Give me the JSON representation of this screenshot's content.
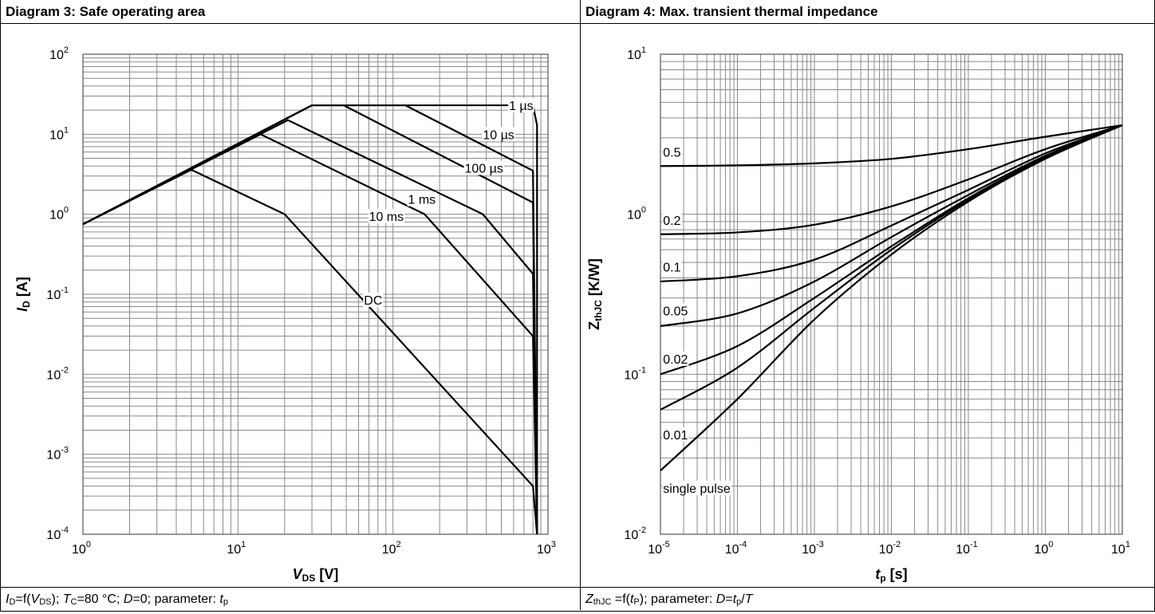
{
  "left": {
    "header": "Diagram 3: Safe operating area",
    "footer": {
      "p1": "I",
      "p1s": "D",
      "p2": "=f(",
      "p3": "V",
      "p3s": "DS",
      "p4": "); ",
      "p5": "T",
      "p5s": "C",
      "p6": "=80 °C; ",
      "p7": "D",
      "p8": "=0; parameter: ",
      "p9": "t",
      "p9s": "p"
    }
  },
  "right": {
    "header": "Diagram 4: Max. transient thermal impedance",
    "footer": {
      "p1": "Z",
      "p1s": "thJC",
      "p2": " =f(",
      "p3": "t",
      "p3s": "P",
      "p4": "); parameter: ",
      "p5": "D",
      "p6": "=",
      "p7": "t",
      "p7s": "p",
      "p8": "/",
      "p9": "T"
    }
  },
  "chart_data": [
    {
      "type": "line",
      "xscale": "log",
      "yscale": "log",
      "xlim": [
        1,
        1000
      ],
      "ylim": [
        0.0001,
        100
      ],
      "xticks": [
        [
          "10",
          "0"
        ],
        [
          "10",
          "1"
        ],
        [
          "10",
          "2"
        ],
        [
          "10",
          "3"
        ]
      ],
      "yticks": [
        [
          "10",
          "2"
        ],
        [
          "10",
          "1"
        ],
        [
          "10",
          "0"
        ],
        [
          "10",
          "-1"
        ],
        [
          "10",
          "-2"
        ],
        [
          "10",
          "-3"
        ],
        [
          "10",
          "-4"
        ]
      ],
      "xlabel": {
        "main": "V",
        "sub": "DS",
        "unit": " [V]"
      },
      "ylabel": {
        "main": "I",
        "sub": "D",
        "unit": " [A]"
      },
      "grid": true,
      "series": [
        {
          "name": "1 µs",
          "points": [
            [
              1,
              0.75
            ],
            [
              30,
              23
            ],
            [
              800,
              23
            ],
            [
              850,
              13
            ],
            [
              850,
              0.0001
            ]
          ]
        },
        {
          "name": "10 µs",
          "points": [
            [
              1,
              0.75
            ],
            [
              30,
              23
            ],
            [
              120,
              23
            ],
            [
              800,
              3.5
            ],
            [
              850,
              0.0001
            ]
          ]
        },
        {
          "name": "100 µs",
          "points": [
            [
              1,
              0.75
            ],
            [
              30,
              23
            ],
            [
              48,
              23
            ],
            [
              800,
              1.4
            ],
            [
              850,
              0.0001
            ]
          ]
        },
        {
          "name": "1 ms",
          "points": [
            [
              1,
              0.75
            ],
            [
              21,
              15
            ],
            [
              380,
              1
            ],
            [
              800,
              0.18
            ],
            [
              850,
              0.0001
            ]
          ]
        },
        {
          "name": "10 ms",
          "points": [
            [
              1,
              0.75
            ],
            [
              14,
              10
            ],
            [
              160,
              1
            ],
            [
              800,
              0.03
            ],
            [
              850,
              0.0001
            ]
          ]
        },
        {
          "name": "DC",
          "points": [
            [
              1,
              0.75
            ],
            [
              5,
              3.6
            ],
            [
              20,
              1
            ],
            [
              800,
              0.0004
            ],
            [
              850,
              0.0001
            ]
          ]
        }
      ],
      "labels": [
        {
          "text": "1 µs",
          "x": 560,
          "y": 23
        },
        {
          "text": "10 µs",
          "x": 380,
          "y": 10
        },
        {
          "text": "100 µs",
          "x": 290,
          "y": 3.8
        },
        {
          "text": "1 ms",
          "x": 125,
          "y": 1.55
        },
        {
          "text": "10 ms",
          "x": 70,
          "y": 0.95
        },
        {
          "text": "DC",
          "x": 65,
          "y": 0.085
        }
      ]
    },
    {
      "type": "line",
      "xscale": "log",
      "yscale": "log",
      "xlim": [
        1e-05,
        10
      ],
      "ylim": [
        0.01,
        10
      ],
      "xticks": [
        [
          "10",
          "-5"
        ],
        [
          "10",
          "-4"
        ],
        [
          "10",
          "-3"
        ],
        [
          "10",
          "-2"
        ],
        [
          "10",
          "-1"
        ],
        [
          "10",
          "0"
        ],
        [
          "10",
          "1"
        ]
      ],
      "yticks": [
        [
          "10",
          "1"
        ],
        [
          "10",
          "0"
        ],
        [
          "10",
          "-1"
        ],
        [
          "10",
          "-2"
        ]
      ],
      "xlabel": {
        "main": "t",
        "sub": "p",
        "unit": " [s]"
      },
      "ylabel": {
        "main": "Z",
        "sub": "thJC",
        "unit": " [K/W]"
      },
      "grid": true,
      "series": [
        {
          "name": "0.5",
          "points": [
            [
              1e-05,
              2
            ],
            [
              0.0001,
              2.02
            ],
            [
              0.001,
              2.08
            ],
            [
              0.01,
              2.22
            ],
            [
              0.1,
              2.55
            ],
            [
              1,
              3.05
            ],
            [
              10,
              3.6
            ]
          ]
        },
        {
          "name": "0.2",
          "points": [
            [
              1e-05,
              0.75
            ],
            [
              0.0001,
              0.77
            ],
            [
              0.001,
              0.86
            ],
            [
              0.01,
              1.12
            ],
            [
              0.1,
              1.65
            ],
            [
              1,
              2.55
            ],
            [
              10,
              3.6
            ]
          ]
        },
        {
          "name": "0.1",
          "points": [
            [
              1e-05,
              0.38
            ],
            [
              0.0001,
              0.41
            ],
            [
              0.001,
              0.52
            ],
            [
              0.01,
              0.85
            ],
            [
              0.1,
              1.42
            ],
            [
              1,
              2.4
            ],
            [
              10,
              3.6
            ]
          ]
        },
        {
          "name": "0.05",
          "points": [
            [
              1e-05,
              0.2
            ],
            [
              0.0001,
              0.24
            ],
            [
              0.001,
              0.38
            ],
            [
              0.01,
              0.72
            ],
            [
              0.1,
              1.32
            ],
            [
              1,
              2.32
            ],
            [
              10,
              3.6
            ]
          ]
        },
        {
          "name": "0.02",
          "points": [
            [
              1e-05,
              0.1
            ],
            [
              0.0001,
              0.15
            ],
            [
              0.001,
              0.3
            ],
            [
              0.01,
              0.63
            ],
            [
              0.1,
              1.26
            ],
            [
              1,
              2.27
            ],
            [
              10,
              3.6
            ]
          ]
        },
        {
          "name": "0.01",
          "points": [
            [
              1e-05,
              0.06
            ],
            [
              0.0001,
              0.11
            ],
            [
              0.001,
              0.26
            ],
            [
              0.01,
              0.6
            ],
            [
              0.1,
              1.23
            ],
            [
              1,
              2.25
            ],
            [
              10,
              3.6
            ]
          ]
        },
        {
          "name": "single pulse",
          "points": [
            [
              1e-05,
              0.025
            ],
            [
              0.0001,
              0.07
            ],
            [
              0.001,
              0.22
            ],
            [
              0.01,
              0.56
            ],
            [
              0.1,
              1.2
            ],
            [
              1,
              2.22
            ],
            [
              10,
              3.6
            ]
          ]
        }
      ],
      "labels": [
        {
          "text": "0.5",
          "x": 1.08e-05,
          "y": 2.45
        },
        {
          "text": "0.2",
          "x": 1.08e-05,
          "y": 0.92
        },
        {
          "text": "0.1",
          "x": 1.08e-05,
          "y": 0.47
        },
        {
          "text": "0.05",
          "x": 1.08e-05,
          "y": 0.25
        },
        {
          "text": "0.02",
          "x": 1.08e-05,
          "y": 0.125
        },
        {
          "text": "0.01",
          "x": 1.08e-05,
          "y": 0.042
        },
        {
          "text": "single pulse",
          "x": 1.08e-05,
          "y": 0.0195
        }
      ]
    }
  ]
}
